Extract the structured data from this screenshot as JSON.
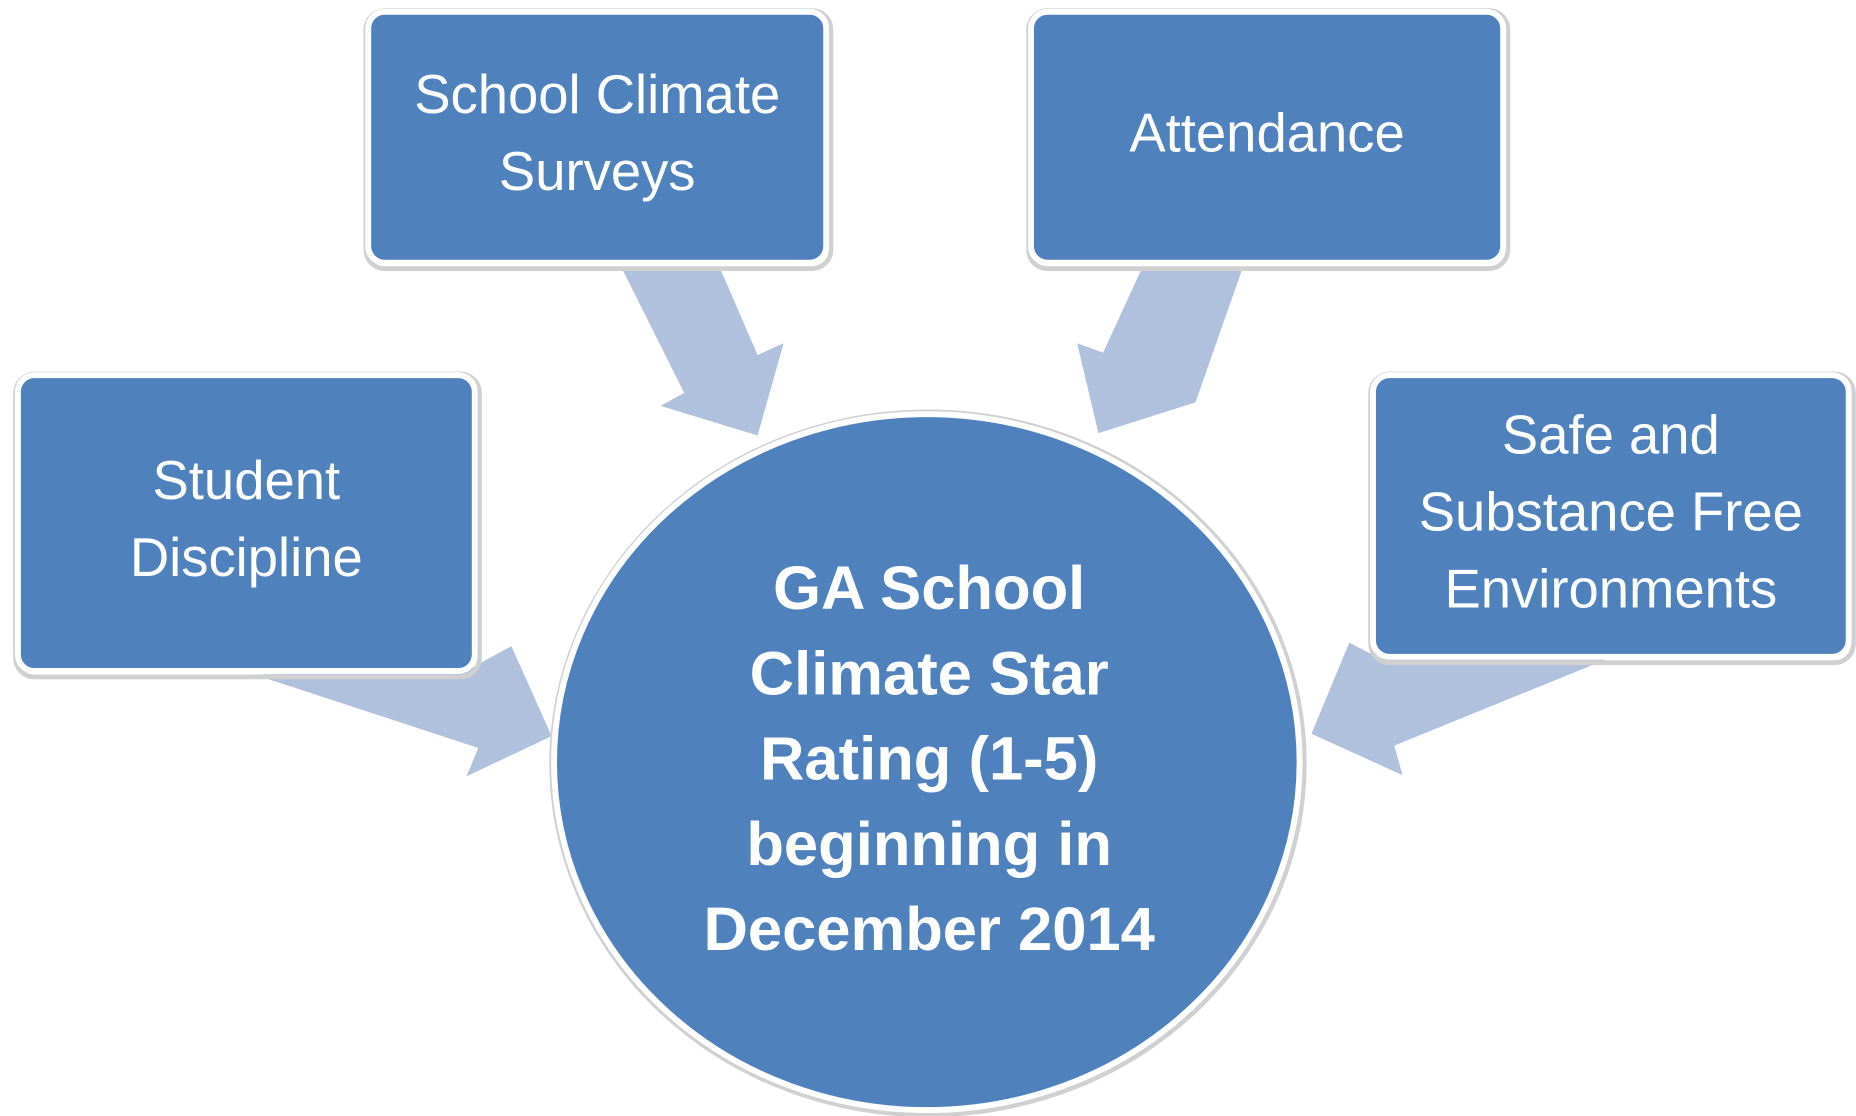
{
  "nodes": [
    {
      "lines": [
        "Student",
        "Discipline"
      ]
    },
    {
      "lines": [
        "School Climate",
        "Surveys"
      ]
    },
    {
      "lines": [
        "Attendance"
      ]
    },
    {
      "lines": [
        "Safe and",
        "Substance Free",
        "Environments"
      ]
    }
  ],
  "center": {
    "lines": [
      "GA School",
      "Climate Star",
      "Rating (1-5)",
      "beginning in",
      "December 2014"
    ]
  }
}
